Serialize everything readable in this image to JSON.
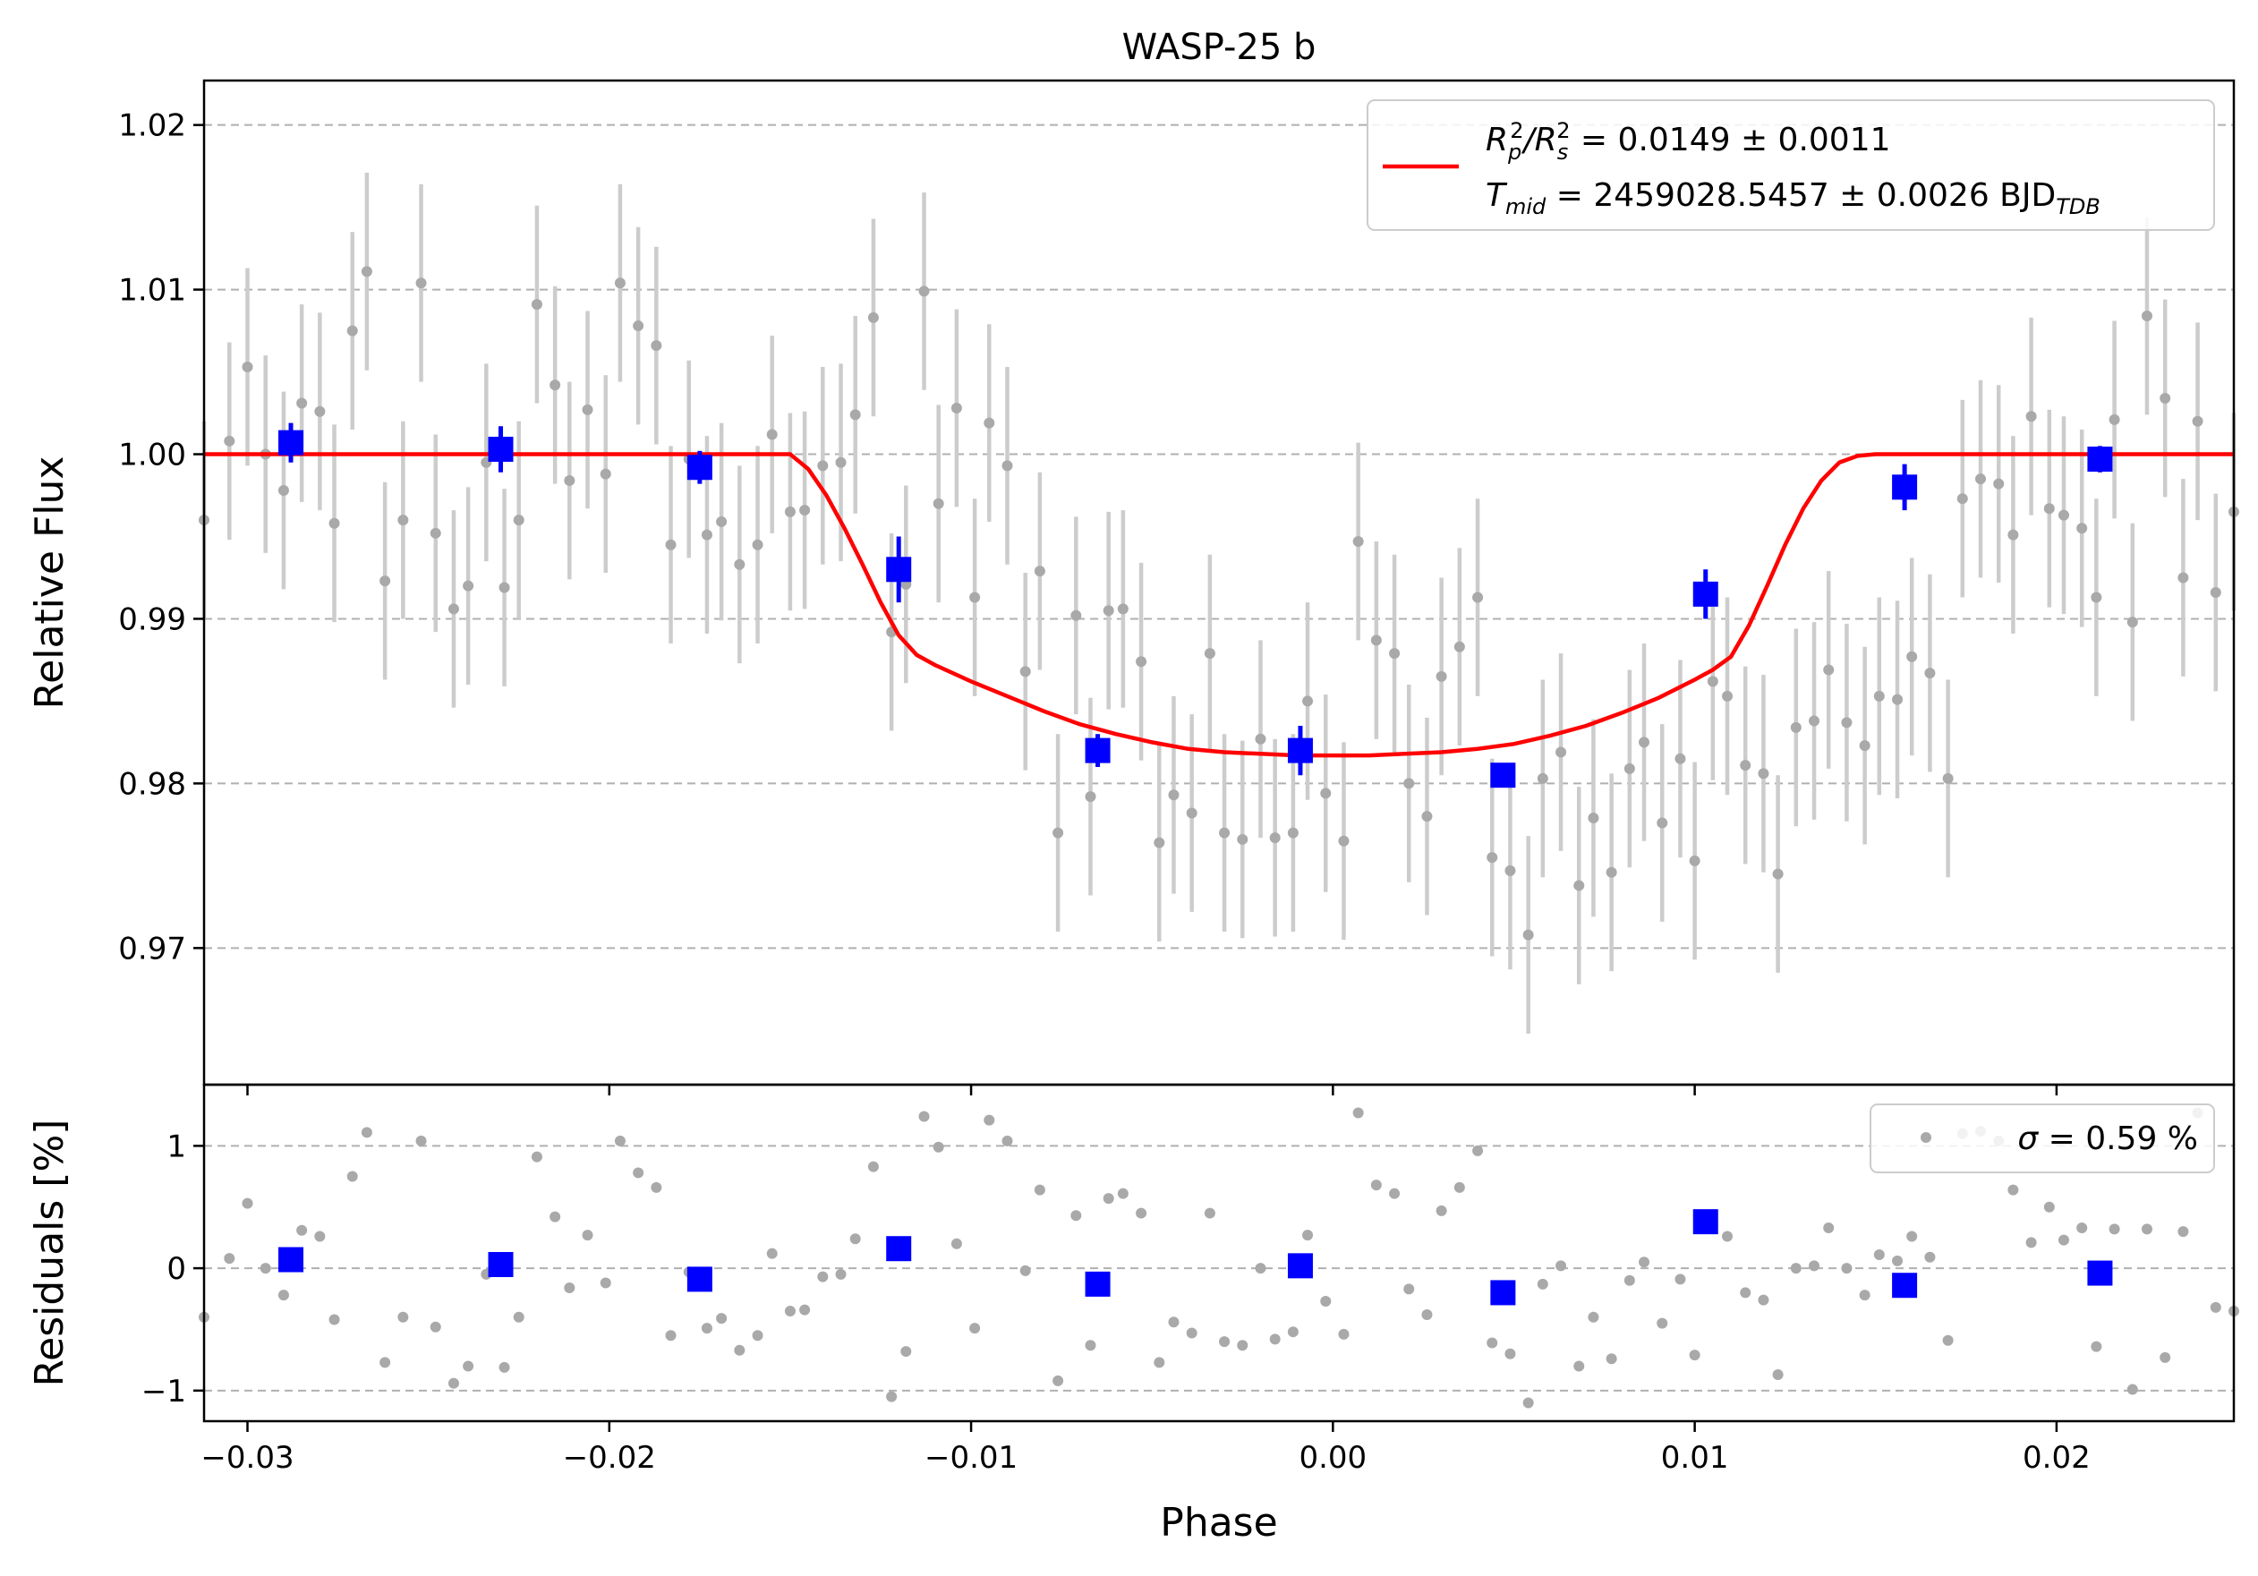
{
  "chart_data": [
    {
      "panel": "main",
      "type": "scatter",
      "title": "WASP-25 b",
      "xlabel": "",
      "ylabel": "Relative Flux",
      "xlim": [
        -0.0312,
        0.0249
      ],
      "ylim": [
        0.9617,
        1.0227
      ],
      "grid": "horizontal-dashed",
      "yticks": [
        0.97,
        0.98,
        0.99,
        1.0,
        1.01,
        1.02
      ],
      "ytick_labels": [
        "0.97",
        "0.98",
        "0.99",
        "1.00",
        "1.01",
        "1.02"
      ],
      "legend": {
        "placement": "upper-right",
        "line1": {
          "pre": "R",
          "sub1": "p",
          "sup1": "2",
          "mid": "/R",
          "sub2": "s",
          "sup2": "2",
          "post": " = 0.0149 ± 0.0011"
        },
        "line2": {
          "pre": "T",
          "sub1": "mid",
          "post": " = 2459028.5457 ± 0.0026 BJD",
          "sub2": "TDB"
        }
      },
      "colors": {
        "raw": "#a9a9a9",
        "errorbar": "#cccccc",
        "binned": "#0000ff",
        "model": "#ff0000",
        "grid": "#b0b0b0"
      },
      "model": {
        "name": "transit model",
        "x": [
          -0.0312,
          -0.015,
          -0.0145,
          -0.014,
          -0.0135,
          -0.013,
          -0.0125,
          -0.012,
          -0.0115,
          -0.011,
          -0.01,
          -0.009,
          -0.008,
          -0.007,
          -0.006,
          -0.005,
          -0.004,
          -0.003,
          -0.002,
          -0.001,
          0.0,
          0.001,
          0.002,
          0.003,
          0.004,
          0.005,
          0.006,
          0.007,
          0.008,
          0.009,
          0.01,
          0.0105,
          0.011,
          0.0115,
          0.012,
          0.0125,
          0.013,
          0.0135,
          0.014,
          0.0145,
          0.015,
          0.0249
        ],
        "y": [
          1.0,
          1.0,
          0.9991,
          0.9975,
          0.9955,
          0.9933,
          0.991,
          0.989,
          0.9878,
          0.9872,
          0.9862,
          0.9853,
          0.9844,
          0.9836,
          0.983,
          0.9825,
          0.9821,
          0.9819,
          0.9818,
          0.9817,
          0.9817,
          0.9817,
          0.9818,
          0.9819,
          0.9821,
          0.9824,
          0.9829,
          0.9835,
          0.9843,
          0.9852,
          0.9863,
          0.9869,
          0.9877,
          0.9896,
          0.992,
          0.9945,
          0.9967,
          0.9984,
          0.9995,
          0.9999,
          1.0,
          1.0
        ]
      },
      "binned": {
        "x": [
          -0.0288,
          -0.023,
          -0.0175,
          -0.012,
          -0.0065,
          -0.0009,
          0.0047,
          0.0103,
          0.0158,
          0.0212
        ],
        "y": [
          1.0007,
          1.0003,
          0.9992,
          0.993,
          0.982,
          0.982,
          0.9805,
          0.9915,
          0.998,
          0.9997
        ],
        "err": [
          0.0012,
          0.0014,
          0.001,
          0.002,
          0.001,
          0.0015,
          0.0007,
          0.0015,
          0.0014,
          0.0008
        ]
      },
      "raw": {
        "err": 0.006,
        "x": [
          -0.0312,
          -0.0305,
          -0.03,
          -0.0295,
          -0.029,
          -0.0285,
          -0.028,
          -0.0276,
          -0.0271,
          -0.0267,
          -0.0262,
          -0.0257,
          -0.0252,
          -0.0248,
          -0.0243,
          -0.0239,
          -0.0234,
          -0.0229,
          -0.0225,
          -0.022,
          -0.0215,
          -0.0211,
          -0.0206,
          -0.0201,
          -0.0197,
          -0.0192,
          -0.0187,
          -0.0183,
          -0.0178,
          -0.0173,
          -0.0169,
          -0.0164,
          -0.0159,
          -0.0155,
          -0.015,
          -0.0146,
          -0.0141,
          -0.0136,
          -0.0132,
          -0.0127,
          -0.0122,
          -0.0118,
          -0.0113,
          -0.0109,
          -0.0104,
          -0.0099,
          -0.0095,
          -0.009,
          -0.0085,
          -0.0081,
          -0.0076,
          -0.0071,
          -0.0067,
          -0.0062,
          -0.0058,
          -0.0053,
          -0.0048,
          -0.0044,
          -0.0039,
          -0.0034,
          -0.003,
          -0.0025,
          -0.002,
          -0.0016,
          -0.0011,
          -0.0007,
          -0.0002,
          0.0003,
          0.0007,
          0.0012,
          0.0017,
          0.0021,
          0.0026,
          0.003,
          0.0035,
          0.004,
          0.0044,
          0.0049,
          0.0054,
          0.0058,
          0.0063,
          0.0068,
          0.0072,
          0.0077,
          0.0082,
          0.0086,
          0.0091,
          0.0096,
          0.01,
          0.0105,
          0.0109,
          0.0114,
          0.0119,
          0.0123,
          0.0128,
          0.0133,
          0.0137,
          0.0142,
          0.0147,
          0.0151,
          0.0156,
          0.016,
          0.0165,
          0.017,
          0.0174,
          0.0179,
          0.0184,
          0.0188,
          0.0193,
          0.0198,
          0.0202,
          0.0207,
          0.0211,
          0.0216,
          0.0221,
          0.0225,
          0.023,
          0.0235,
          0.0239,
          0.0244,
          0.0249
        ],
        "y": [
          0.996,
          1.0008,
          1.0053,
          1.0,
          0.9978,
          1.0031,
          1.0026,
          0.9958,
          1.0075,
          1.0111,
          0.9923,
          0.996,
          1.0104,
          0.9952,
          0.9906,
          0.992,
          0.9995,
          0.9919,
          0.996,
          1.0091,
          1.0042,
          0.9984,
          1.0027,
          0.9988,
          1.0104,
          1.0078,
          1.0066,
          0.9945,
          0.9997,
          0.9951,
          0.9959,
          0.9933,
          0.9945,
          1.0012,
          0.9965,
          0.9966,
          0.9993,
          0.9995,
          1.0024,
          1.0083,
          0.9892,
          0.9921,
          1.0099,
          0.997,
          1.0028,
          0.9913,
          1.0019,
          0.9993,
          0.9868,
          0.9929,
          0.977,
          0.9902,
          0.9792,
          0.9905,
          0.9906,
          0.9874,
          0.9764,
          0.9793,
          0.9782,
          0.9879,
          0.977,
          0.9766,
          0.9827,
          0.9767,
          0.977,
          0.985,
          0.9794,
          0.9765,
          0.9947,
          0.9887,
          0.9879,
          0.98,
          0.978,
          0.9865,
          0.9883,
          0.9913,
          0.9755,
          0.9747,
          0.9708,
          0.9803,
          0.9819,
          0.9738,
          0.9779,
          0.9746,
          0.9809,
          0.9825,
          0.9776,
          0.9815,
          0.9753,
          0.9862,
          0.9853,
          0.9811,
          0.9806,
          0.9745,
          0.9834,
          0.9838,
          0.9869,
          0.9837,
          0.9823,
          0.9853,
          0.9851,
          0.9877,
          0.9867,
          0.9803,
          0.9973,
          0.9985,
          0.9982,
          0.9951,
          1.0023,
          0.9967,
          0.9963,
          0.9955,
          0.9913,
          1.0021,
          0.9898,
          1.0084,
          1.0034,
          0.9925,
          1.002,
          0.9916,
          0.9965
        ]
      }
    },
    {
      "panel": "residuals",
      "type": "scatter",
      "xlabel": "Phase",
      "ylabel": "Residuals [%]",
      "xlim": [
        -0.0312,
        0.0249
      ],
      "ylim": [
        -1.25,
        1.5
      ],
      "grid": "horizontal-dashed",
      "xticks": [
        -0.03,
        -0.02,
        -0.01,
        0.0,
        0.01,
        0.02
      ],
      "xtick_labels": [
        "−0.03",
        "−0.02",
        "−0.01",
        "0.00",
        "0.01",
        "0.02"
      ],
      "yticks": [
        -1,
        0,
        1
      ],
      "ytick_labels": [
        "−1",
        "0",
        "1"
      ],
      "legend": {
        "placement": "upper-right",
        "text_pre": "σ",
        "text_post": " = 0.59 %"
      },
      "binned": {
        "x": [
          -0.0288,
          -0.023,
          -0.0175,
          -0.012,
          -0.0065,
          -0.0009,
          0.0047,
          0.0103,
          0.0158,
          0.0212
        ],
        "y": [
          0.07,
          0.03,
          -0.09,
          0.16,
          -0.13,
          0.02,
          -0.2,
          0.38,
          -0.14,
          -0.04
        ]
      },
      "raw": {
        "x": [
          -0.0312,
          -0.0305,
          -0.03,
          -0.0295,
          -0.029,
          -0.0285,
          -0.028,
          -0.0276,
          -0.0271,
          -0.0267,
          -0.0262,
          -0.0257,
          -0.0252,
          -0.0248,
          -0.0243,
          -0.0239,
          -0.0234,
          -0.0229,
          -0.0225,
          -0.022,
          -0.0215,
          -0.0211,
          -0.0206,
          -0.0201,
          -0.0197,
          -0.0192,
          -0.0187,
          -0.0183,
          -0.0178,
          -0.0173,
          -0.0169,
          -0.0164,
          -0.0159,
          -0.0155,
          -0.015,
          -0.0146,
          -0.0141,
          -0.0136,
          -0.0132,
          -0.0127,
          -0.0122,
          -0.0118,
          -0.0113,
          -0.0109,
          -0.0104,
          -0.0099,
          -0.0095,
          -0.009,
          -0.0085,
          -0.0081,
          -0.0076,
          -0.0071,
          -0.0067,
          -0.0062,
          -0.0058,
          -0.0053,
          -0.0048,
          -0.0044,
          -0.0039,
          -0.0034,
          -0.003,
          -0.0025,
          -0.002,
          -0.0016,
          -0.0011,
          -0.0007,
          -0.0002,
          0.0003,
          0.0007,
          0.0012,
          0.0017,
          0.0021,
          0.0026,
          0.003,
          0.0035,
          0.004,
          0.0044,
          0.0049,
          0.0054,
          0.0058,
          0.0063,
          0.0068,
          0.0072,
          0.0077,
          0.0082,
          0.0086,
          0.0091,
          0.0096,
          0.01,
          0.0105,
          0.0109,
          0.0114,
          0.0119,
          0.0123,
          0.0128,
          0.0133,
          0.0137,
          0.0142,
          0.0147,
          0.0151,
          0.0156,
          0.016,
          0.0165,
          0.017,
          0.0174,
          0.0179,
          0.0184,
          0.0188,
          0.0193,
          0.0198,
          0.0202,
          0.0207,
          0.0211,
          0.0216,
          0.0221,
          0.0225,
          0.023,
          0.0235,
          0.0239,
          0.0244,
          0.0249
        ],
        "y": [
          -0.4,
          0.08,
          0.53,
          0.0,
          -0.22,
          0.31,
          0.26,
          -0.42,
          0.75,
          1.11,
          -0.77,
          -0.4,
          1.04,
          -0.48,
          -0.94,
          -0.8,
          -0.05,
          -0.81,
          -0.4,
          0.91,
          0.42,
          -0.16,
          0.27,
          -0.12,
          1.04,
          0.78,
          0.66,
          -0.55,
          -0.03,
          -0.49,
          -0.41,
          -0.67,
          -0.55,
          0.12,
          -0.35,
          -0.34,
          -0.07,
          -0.05,
          0.24,
          0.83,
          -1.05,
          -0.68,
          1.24,
          0.99,
          0.2,
          -0.49,
          1.21,
          1.04,
          -0.02,
          0.64,
          -0.92,
          0.43,
          -0.63,
          0.57,
          0.61,
          0.45,
          -0.77,
          -0.44,
          -0.53,
          0.45,
          -0.6,
          -0.63,
          0.0,
          -0.58,
          -0.52,
          0.27,
          -0.27,
          -0.54,
          1.27,
          0.68,
          0.61,
          -0.17,
          -0.38,
          0.47,
          0.66,
          0.96,
          -0.61,
          -0.7,
          -1.1,
          -0.13,
          0.02,
          -0.8,
          -0.4,
          -0.74,
          -0.1,
          0.05,
          -0.45,
          -0.09,
          -0.71,
          0.36,
          0.26,
          -0.2,
          -0.26,
          -0.87,
          0.0,
          0.02,
          0.33,
          0.0,
          -0.22,
          0.11,
          0.06,
          0.26,
          0.09,
          -0.59,
          1.1,
          1.12,
          1.04,
          0.64,
          0.21,
          0.5,
          0.23,
          0.33,
          -0.64,
          0.32,
          -0.99,
          0.32,
          -0.73,
          0.3,
          1.27,
          -0.32,
          -0.35
        ]
      }
    }
  ]
}
